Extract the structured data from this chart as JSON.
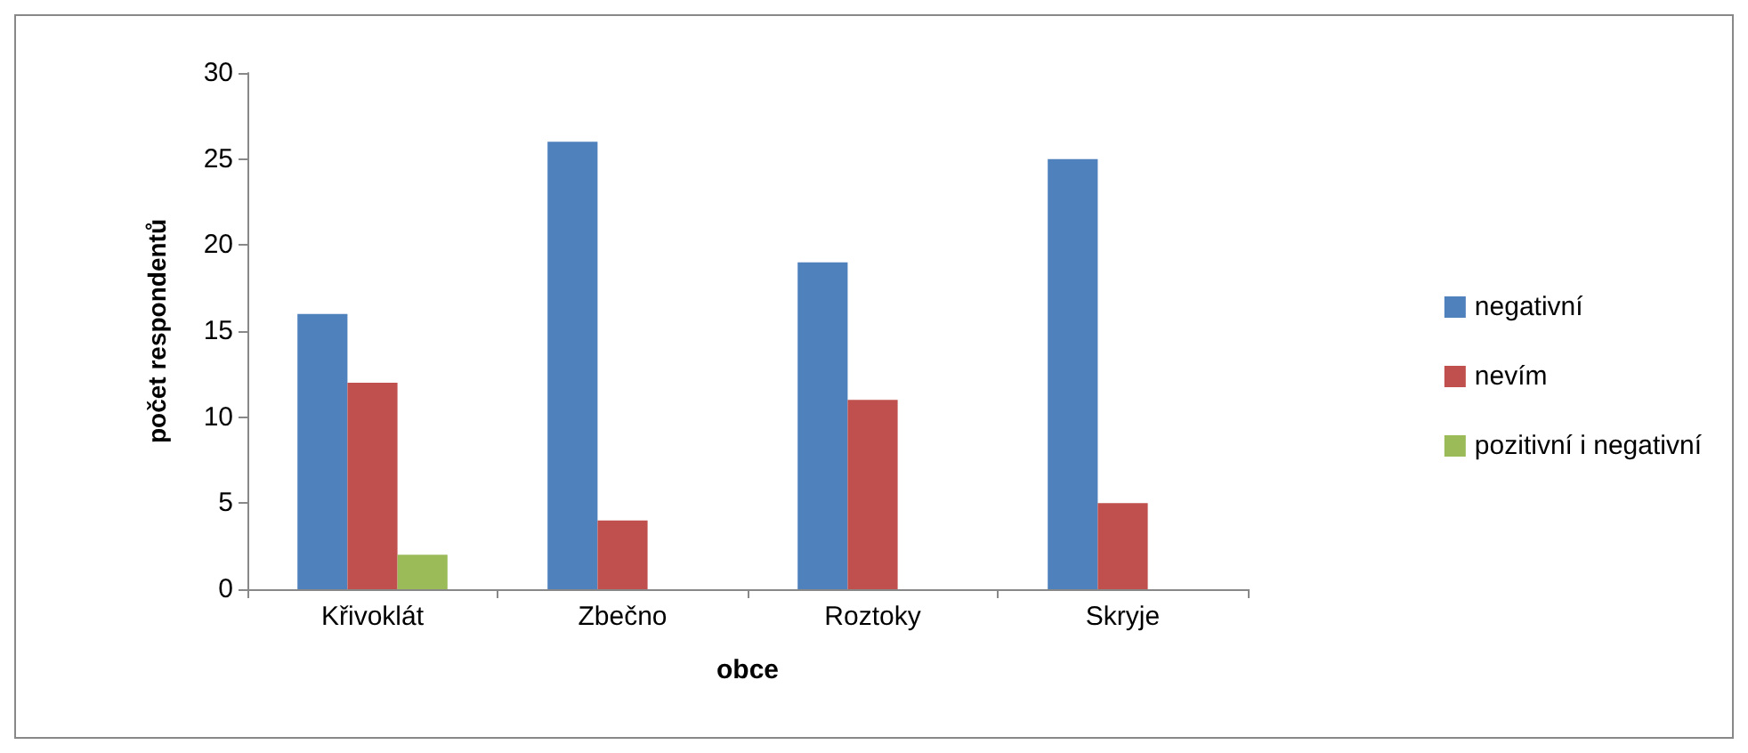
{
  "chart_data": {
    "type": "bar",
    "xlabel": "obce",
    "ylabel": "počet respondentů",
    "categories": [
      "Křivoklát",
      "Zbečno",
      "Roztoky",
      "Skryje"
    ],
    "series": [
      {
        "name": "negativní",
        "color": "#4f81bd",
        "values": [
          16,
          26,
          19,
          25
        ]
      },
      {
        "name": "nevím",
        "color": "#c0504d",
        "values": [
          12,
          4,
          11,
          5
        ]
      },
      {
        "name": "pozitivní i negativní",
        "color": "#9bbb59",
        "values": [
          2,
          null,
          null,
          null
        ]
      }
    ],
    "ylim": [
      0,
      30
    ],
    "yticks": [
      0,
      5,
      10,
      15,
      20,
      25,
      30
    ],
    "grid": false,
    "legend": "right"
  }
}
